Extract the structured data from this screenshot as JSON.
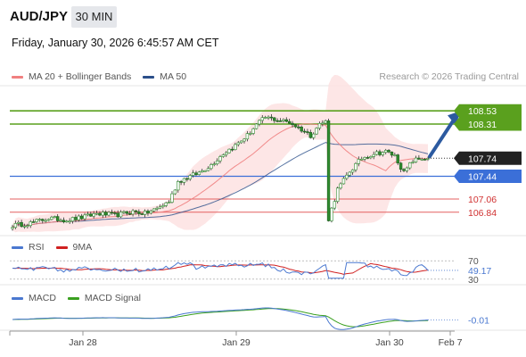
{
  "header": {
    "symbol": "AUD/JPY",
    "timeframe": "30 MIN",
    "datetime": "Friday, January 30, 2026 6:45:57 AM CET",
    "credit": "Research © 2026 Trading Central"
  },
  "colors": {
    "candle": "#2f8c2f",
    "ma20": "#f08080",
    "band_fill": "#fde2e2",
    "ma50": "#2b4f8a",
    "green_level": "#5aa01e",
    "blue_level": "#3b6fd8",
    "red_level": "#e46060",
    "arrow": "#2c5aa0",
    "rsi": "#4a78d0",
    "rsi_ma": "#d02020",
    "macd": "#4a78d0",
    "macd_signal": "#3aa020"
  },
  "chart_data": [
    {
      "type": "candlestick",
      "legend": [
        "MA 20 + Bollinger Bands",
        "MA 50"
      ],
      "ylim": [
        106.45,
        108.95
      ],
      "x_ticks": [
        "Jan 28",
        "Jan 29",
        "Jan 30",
        "Feb 7"
      ],
      "last_price": 107.74,
      "levels": {
        "resistance": [
          108.53,
          108.31
        ],
        "pivot": 107.44,
        "support": [
          107.06,
          106.84
        ]
      },
      "price_path": [
        [
          0,
          106.62
        ],
        [
          6,
          106.66
        ],
        [
          12,
          106.74
        ],
        [
          18,
          106.71
        ],
        [
          24,
          106.76
        ],
        [
          28,
          106.82
        ],
        [
          34,
          106.79
        ],
        [
          40,
          106.85
        ],
        [
          44,
          106.82
        ],
        [
          48,
          106.9
        ],
        [
          52,
          107.02
        ],
        [
          55,
          107.35
        ],
        [
          58,
          107.42
        ],
        [
          62,
          107.5
        ],
        [
          66,
          107.63
        ],
        [
          70,
          107.82
        ],
        [
          74,
          107.95
        ],
        [
          78,
          108.12
        ],
        [
          81,
          108.3
        ],
        [
          84,
          108.42
        ],
        [
          88,
          108.38
        ],
        [
          92,
          108.34
        ],
        [
          96,
          108.22
        ],
        [
          99,
          108.12
        ],
        [
          102,
          108.31
        ],
        [
          104,
          108.35
        ],
        [
          105,
          106.73
        ],
        [
          108,
          107.22
        ],
        [
          112,
          107.52
        ],
        [
          116,
          107.74
        ],
        [
          120,
          107.82
        ],
        [
          124,
          107.85
        ],
        [
          127,
          107.78
        ],
        [
          130,
          107.5
        ],
        [
          133,
          107.7
        ],
        [
          136,
          107.74
        ],
        [
          138,
          107.74
        ]
      ],
      "projection": {
        "from": 107.74,
        "to": 108.53
      }
    },
    {
      "type": "line",
      "legend": [
        "RSI",
        "9MA"
      ],
      "ylim": [
        20,
        80
      ],
      "ticks": [
        30,
        70
      ],
      "last_value": 49.17
    },
    {
      "type": "line",
      "legend": [
        "MACD",
        "MACD Signal"
      ],
      "last_value": -0.01
    }
  ]
}
